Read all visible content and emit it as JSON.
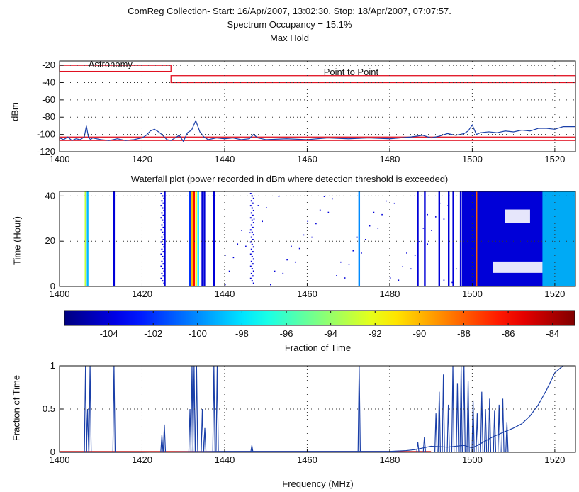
{
  "figure": {
    "title_line1": "ComReg Collection- Start: 16/Apr/2007, 13:02:30. Stop:  18/Apr/2007, 07:07:57.",
    "title_line2": "Spectrum Occupancy = 15.1%",
    "title_line3": "Max Hold",
    "waterfall_title": "Waterfall plot (power recorded in dBm where detection threshold is exceeded)",
    "colorbar_label": "Fraction of Time",
    "xlabel": "Frequency (MHz)"
  },
  "colors": {
    "trace": "#1a3fa8",
    "threshold": "#e01020",
    "grid": "#333333",
    "occupancy_baseline": "#c01818"
  },
  "chart_data": [
    {
      "type": "line",
      "panel": "max-hold",
      "ylabel": "dBm",
      "xlim": [
        1400,
        1525
      ],
      "ylim": [
        -120,
        -15
      ],
      "xticks": [
        1400,
        1420,
        1440,
        1460,
        1480,
        1500,
        1520
      ],
      "yticks": [
        -20,
        -40,
        -60,
        -80,
        -100,
        -120
      ],
      "grid": true,
      "annotations": [
        {
          "text": "Astronomy",
          "x": 1407,
          "y": -19
        },
        {
          "text": "Point to Point",
          "x": 1464,
          "y": -28
        }
      ],
      "bands": [
        {
          "x0": 1400,
          "x1": 1427,
          "ylow": -27,
          "yhigh": -20
        },
        {
          "x0": 1427,
          "x1": 1525,
          "ylow": -40,
          "yhigh": -32
        },
        {
          "x0": 1400,
          "x1": 1525,
          "ylow": -107,
          "yhigh": -103
        }
      ],
      "series": [
        {
          "x": [
            1400,
            1401,
            1402,
            1403,
            1404,
            1405,
            1406,
            1406.5,
            1407,
            1407.5,
            1408,
            1410,
            1412,
            1414,
            1416,
            1418,
            1420,
            1421,
            1422,
            1423,
            1424,
            1425,
            1426,
            1427,
            1428,
            1429,
            1430,
            1431,
            1432,
            1433,
            1434,
            1435,
            1436,
            1438,
            1440,
            1442,
            1444,
            1446,
            1447,
            1448,
            1450,
            1455,
            1460,
            1465,
            1470,
            1475,
            1480,
            1485,
            1488,
            1490,
            1492,
            1494,
            1496,
            1498,
            1499,
            1500,
            1501,
            1502,
            1504,
            1506,
            1508,
            1510,
            1512,
            1514,
            1516,
            1518,
            1520,
            1522,
            1525
          ],
          "y": [
            -104,
            -106,
            -103,
            -107,
            -105,
            -106,
            -103,
            -90,
            -103,
            -106,
            -104,
            -106,
            -107,
            -105,
            -107,
            -106,
            -104,
            -101,
            -96,
            -94,
            -97,
            -101,
            -106,
            -107,
            -104,
            -101,
            -108,
            -98,
            -95,
            -84,
            -97,
            -103,
            -106,
            -104,
            -105,
            -104,
            -106,
            -105,
            -100,
            -104,
            -106,
            -105,
            -106,
            -104,
            -105,
            -104,
            -105,
            -103,
            -101,
            -104,
            -102,
            -99,
            -101,
            -99,
            -96,
            -89,
            -100,
            -98,
            -97,
            -98,
            -96,
            -97,
            -95,
            -96,
            -93,
            -93,
            -94,
            -91,
            -91
          ]
        }
      ]
    },
    {
      "type": "heatmap",
      "panel": "waterfall",
      "ylabel": "Time (Hour)",
      "xlim": [
        1400,
        1525
      ],
      "ylim": [
        0,
        42
      ],
      "xticks": [
        1400,
        1420,
        1440,
        1460,
        1480,
        1500,
        1520
      ],
      "yticks": [
        0,
        20,
        40
      ],
      "grid": true,
      "lines": [
        {
          "x": 1406.3,
          "level": -93
        },
        {
          "x": 1406.8,
          "level": -99
        },
        {
          "x": 1413.2,
          "level": -104
        },
        {
          "x": 1424.8,
          "level": -104,
          "scattered": true
        },
        {
          "x": 1425.5,
          "level": -104
        },
        {
          "x": 1431.6,
          "level": -102
        },
        {
          "x": 1432.1,
          "level": -90
        },
        {
          "x": 1432.6,
          "level": -86
        },
        {
          "x": 1433.1,
          "level": -92
        },
        {
          "x": 1433.6,
          "level": -98
        },
        {
          "x": 1434.6,
          "level": -104
        },
        {
          "x": 1435.1,
          "level": -104
        },
        {
          "x": 1437.4,
          "level": -104
        },
        {
          "x": 1446.5,
          "level": -104,
          "scattered": true
        },
        {
          "x": 1472.6,
          "level": -100
        },
        {
          "x": 1486.8,
          "level": -104
        },
        {
          "x": 1488.5,
          "level": -104
        },
        {
          "x": 1492.0,
          "level": -104
        },
        {
          "x": 1494.3,
          "level": -104
        },
        {
          "x": 1495.4,
          "level": -104
        },
        {
          "x": 1497.2,
          "level": -104
        },
        {
          "x": 1501.0,
          "level": -88
        }
      ],
      "region": {
        "x0": 1497.5,
        "x1": 1525,
        "level": -104
      }
    },
    {
      "type": "colorbar",
      "panel": "colorbar",
      "range": [
        -106,
        -83
      ],
      "ticks": [
        -104,
        -102,
        -100,
        -98,
        -96,
        -94,
        -92,
        -90,
        -88,
        -86,
        -84
      ]
    },
    {
      "type": "line",
      "panel": "occupancy",
      "ylabel": "Fraction of Time",
      "xlim": [
        1400,
        1525
      ],
      "ylim": [
        0,
        1
      ],
      "xticks": [
        1400,
        1420,
        1440,
        1460,
        1480,
        1500,
        1520
      ],
      "yticks": [
        0,
        0.5,
        1
      ],
      "ytick_labels": [
        "0",
        "0.5",
        "1"
      ],
      "grid": true,
      "spikes": [
        {
          "x": 1406.3,
          "y": 1.0
        },
        {
          "x": 1406.8,
          "y": 0.5
        },
        {
          "x": 1407.4,
          "y": 1.0
        },
        {
          "x": 1413.2,
          "y": 1.0
        },
        {
          "x": 1424.8,
          "y": 0.2
        },
        {
          "x": 1425.4,
          "y": 0.32
        },
        {
          "x": 1431.6,
          "y": 0.5
        },
        {
          "x": 1432.1,
          "y": 1.0
        },
        {
          "x": 1432.6,
          "y": 1.0
        },
        {
          "x": 1433.2,
          "y": 1.0
        },
        {
          "x": 1434.6,
          "y": 0.5
        },
        {
          "x": 1435.2,
          "y": 0.28
        },
        {
          "x": 1437.4,
          "y": 1.0
        },
        {
          "x": 1438.2,
          "y": 1.0
        },
        {
          "x": 1446.6,
          "y": 0.08
        },
        {
          "x": 1472.6,
          "y": 1.0
        },
        {
          "x": 1486.8,
          "y": 0.12
        },
        {
          "x": 1488.4,
          "y": 0.18
        },
        {
          "x": 1491.2,
          "y": 0.45
        },
        {
          "x": 1492.0,
          "y": 0.7
        },
        {
          "x": 1493.0,
          "y": 0.9
        },
        {
          "x": 1494.2,
          "y": 0.55
        },
        {
          "x": 1495.3,
          "y": 1.0
        },
        {
          "x": 1496.4,
          "y": 0.8
        },
        {
          "x": 1497.3,
          "y": 1.0
        },
        {
          "x": 1498.0,
          "y": 1.0
        },
        {
          "x": 1499.0,
          "y": 0.82
        },
        {
          "x": 1500.2,
          "y": 0.6
        },
        {
          "x": 1501.2,
          "y": 0.45
        },
        {
          "x": 1502.3,
          "y": 0.7
        },
        {
          "x": 1503.2,
          "y": 0.5
        },
        {
          "x": 1504.2,
          "y": 0.62
        },
        {
          "x": 1505.4,
          "y": 0.48
        },
        {
          "x": 1506.5,
          "y": 0.55
        },
        {
          "x": 1507.4,
          "y": 0.62
        },
        {
          "x": 1508.4,
          "y": 0.35
        }
      ],
      "series": [
        {
          "x": [
            1400,
            1420,
            1440,
            1460,
            1470,
            1480,
            1484,
            1486,
            1488,
            1490,
            1494,
            1498,
            1500,
            1502,
            1505,
            1508,
            1510,
            1512,
            1514,
            1516,
            1518,
            1520,
            1522
          ],
          "y": [
            0,
            0,
            0.01,
            0.01,
            0.01,
            0.01,
            0.02,
            0.03,
            0.05,
            0.07,
            0.06,
            0.08,
            0.05,
            0.1,
            0.18,
            0.24,
            0.28,
            0.33,
            0.42,
            0.55,
            0.72,
            0.92,
            1.0
          ]
        }
      ]
    }
  ]
}
